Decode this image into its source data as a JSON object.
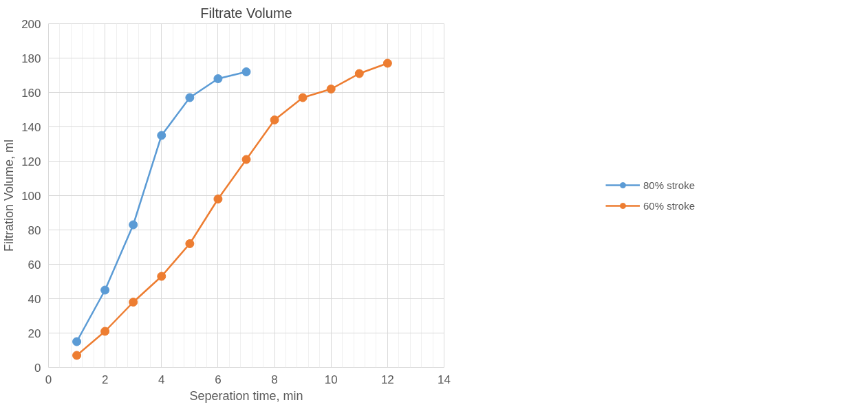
{
  "chart_data": {
    "type": "line",
    "title": "Filtrate Volume",
    "xlabel": "Seperation time, min",
    "ylabel": "Filtration Volume, ml",
    "series": [
      {
        "name": "80% stroke",
        "color": "#5b9bd5",
        "x": [
          1,
          2,
          3,
          4,
          5,
          6,
          7
        ],
        "values": [
          15,
          45,
          83,
          135,
          157,
          168,
          172
        ]
      },
      {
        "name": "60% stroke",
        "color": "#ed7d31",
        "x": [
          1,
          2,
          3,
          4,
          5,
          6,
          7,
          8,
          9,
          10,
          11,
          12
        ],
        "values": [
          7,
          21,
          38,
          53,
          72,
          98,
          121,
          144,
          157,
          162,
          171,
          177
        ]
      }
    ],
    "xlim": [
      0,
      14
    ],
    "xticks": [
      0,
      2,
      4,
      6,
      8,
      10,
      12,
      14
    ],
    "ylim": [
      0,
      200
    ],
    "yticks": [
      0,
      20,
      40,
      60,
      80,
      100,
      120,
      140,
      160,
      180,
      200
    ],
    "grid": true,
    "legend": "right",
    "marker": "circle",
    "line_style": "solid"
  }
}
